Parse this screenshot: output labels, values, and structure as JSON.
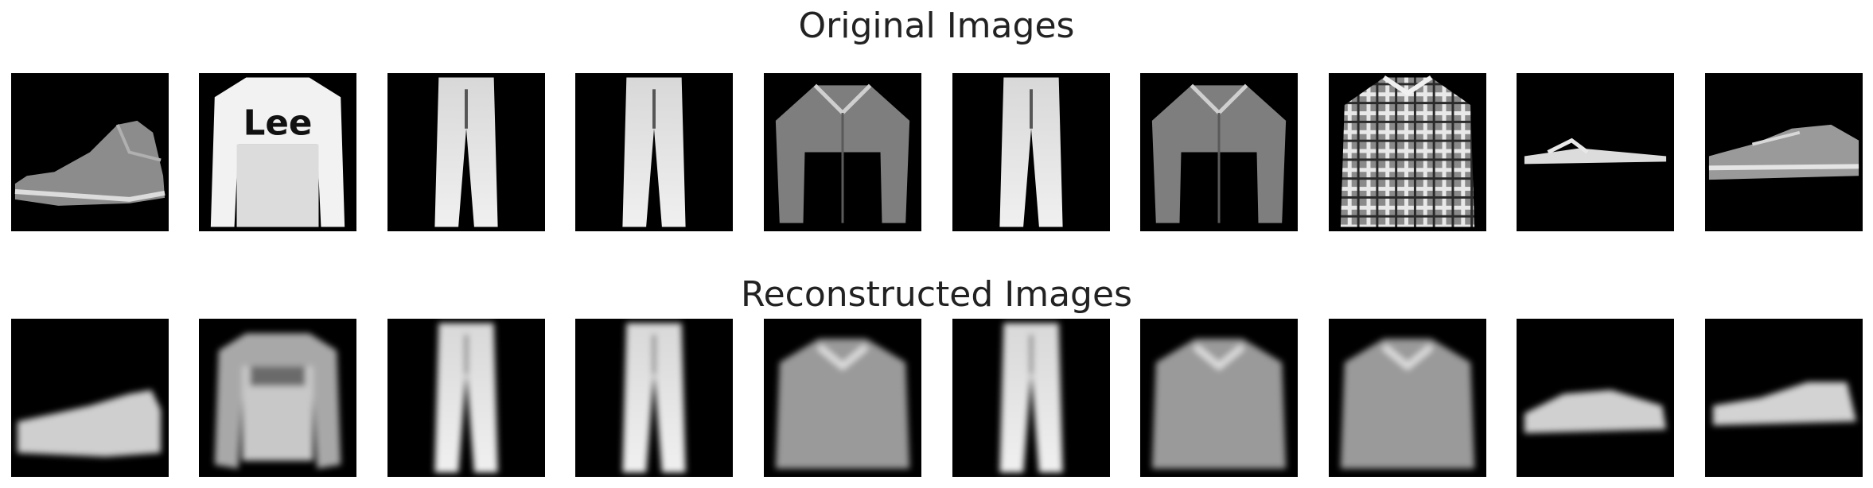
{
  "rows": [
    {
      "id": "original",
      "title": "Original Images",
      "tiles": [
        {
          "item": "ankle-boot"
        },
        {
          "item": "pullover",
          "print": "Lee"
        },
        {
          "item": "trouser"
        },
        {
          "item": "trouser"
        },
        {
          "item": "shirt"
        },
        {
          "item": "trouser"
        },
        {
          "item": "shirt"
        },
        {
          "item": "shirt-plaid"
        },
        {
          "item": "sandal"
        },
        {
          "item": "sneaker"
        }
      ]
    },
    {
      "id": "reconstructed",
      "title": "Reconstructed Images",
      "tiles": [
        {
          "item": "ankle-boot"
        },
        {
          "item": "pullover"
        },
        {
          "item": "trouser"
        },
        {
          "item": "trouser"
        },
        {
          "item": "shirt"
        },
        {
          "item": "trouser"
        },
        {
          "item": "shirt"
        },
        {
          "item": "shirt"
        },
        {
          "item": "sandal"
        },
        {
          "item": "sneaker"
        }
      ]
    }
  ]
}
